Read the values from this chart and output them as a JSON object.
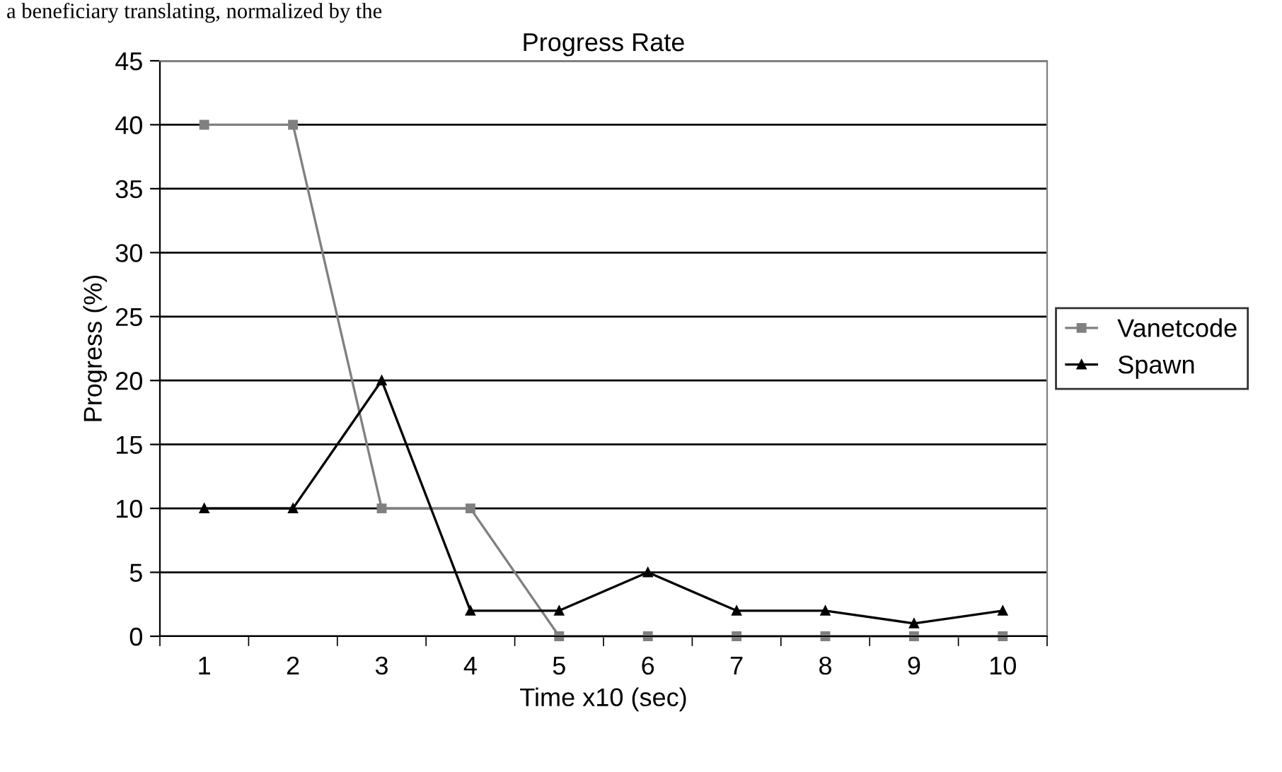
{
  "chart_data": {
    "type": "line",
    "title": "Progress Rate",
    "xlabel": "Time x10 (sec)",
    "ylabel": "Progress (%)",
    "annotations": [
      "a beneficiary translating, normalized by the"
    ],
    "categories": [
      "1",
      "2",
      "3",
      "4",
      "5",
      "6",
      "7",
      "8",
      "9",
      "10"
    ],
    "series": [
      {
        "name": "Vanetcode",
        "color": "#808080",
        "marker": "square",
        "values": [
          40,
          40,
          10,
          10,
          0,
          0,
          0,
          0,
          0,
          0
        ]
      },
      {
        "name": "Spawn",
        "color": "#000000",
        "marker": "triangle",
        "values": [
          10,
          10,
          20,
          2,
          2,
          5,
          2,
          2,
          1,
          2
        ]
      }
    ],
    "ylim": [
      0,
      45
    ],
    "yticks": [
      0,
      5,
      10,
      15,
      20,
      25,
      30,
      35,
      40,
      45
    ],
    "grid": "y",
    "legend": "right"
  }
}
